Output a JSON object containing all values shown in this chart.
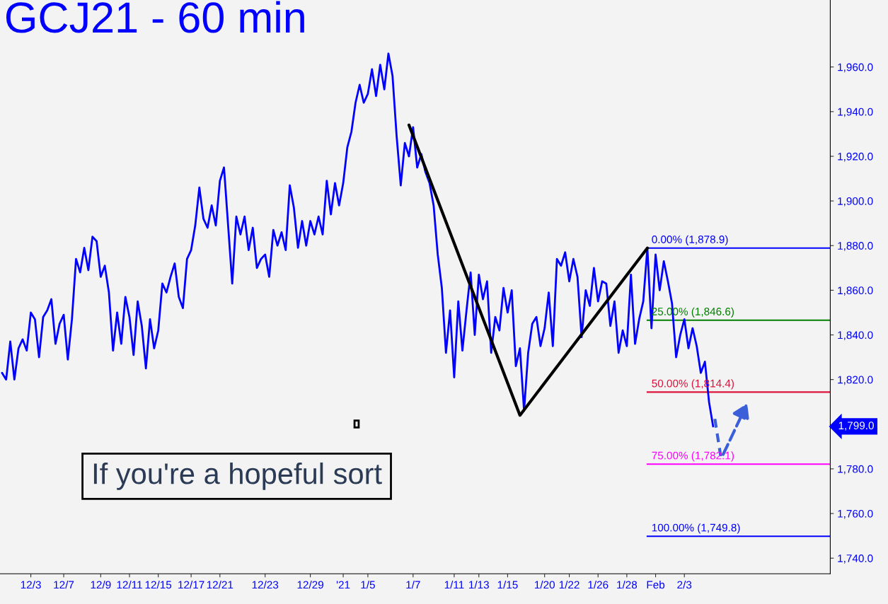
{
  "chart_data": {
    "type": "line",
    "title": "GCJ21 - 60 min",
    "ylim": [
      1733,
      1990
    ],
    "categories": [
      null,
      null,
      null,
      null,
      null,
      null,
      null,
      "12/3",
      null,
      null,
      null,
      null,
      null,
      null,
      null,
      "12/7",
      null,
      null,
      null,
      null,
      null,
      null,
      null,
      null,
      "12/9",
      null,
      null,
      null,
      null,
      null,
      null,
      "12/11",
      null,
      null,
      null,
      null,
      null,
      null,
      "12/15",
      null,
      null,
      null,
      null,
      null,
      null,
      null,
      "12/17",
      null,
      null,
      null,
      null,
      null,
      null,
      "12/21",
      null,
      null,
      null,
      null,
      null,
      null,
      null,
      null,
      null,
      null,
      "12/23",
      null,
      null,
      null,
      null,
      null,
      null,
      null,
      null,
      null,
      null,
      "12/29",
      null,
      null,
      null,
      null,
      null,
      null,
      null,
      "'21",
      null,
      null,
      null,
      null,
      null,
      "1/5",
      null,
      null,
      null,
      null,
      null,
      null,
      null,
      null,
      null,
      null,
      "1/7",
      null,
      null,
      null,
      null,
      null,
      null,
      null,
      null,
      null,
      "1/11",
      null,
      null,
      null,
      null,
      null,
      "1/13",
      null,
      null,
      null,
      null,
      null,
      null,
      "1/15",
      null,
      null,
      null,
      null,
      null,
      null,
      null,
      null,
      "1/20",
      null,
      null,
      null,
      null,
      null,
      "1/22",
      null,
      null,
      null,
      null,
      null,
      null,
      "1/26",
      null,
      null,
      null,
      null,
      null,
      null,
      "1/28",
      null,
      null,
      null,
      null,
      null,
      null,
      "Feb",
      null,
      null,
      null,
      null,
      null,
      null,
      "2/3",
      null,
      null,
      null,
      null,
      null,
      null,
      null,
      null,
      null,
      null,
      null,
      null,
      null,
      null,
      null,
      null,
      null,
      null,
      null,
      null,
      null,
      null,
      null,
      null,
      null,
      null,
      null,
      null,
      null,
      null,
      null,
      null,
      null,
      null,
      null
    ],
    "yticks": [
      {
        "value": 1740,
        "label": "1,740.0"
      },
      {
        "value": 1760,
        "label": "1,760.0"
      },
      {
        "value": 1780,
        "label": "1,780.0"
      },
      {
        "value": 1820,
        "label": "1,820.0"
      },
      {
        "value": 1840,
        "label": "1,840.0"
      },
      {
        "value": 1860,
        "label": "1,860.0"
      },
      {
        "value": 1880,
        "label": "1,880.0"
      },
      {
        "value": 1900,
        "label": "1,900.0"
      },
      {
        "value": 1920,
        "label": "1,920.0"
      },
      {
        "value": 1940,
        "label": "1,940.0"
      },
      {
        "value": 1960,
        "label": "1,960.0"
      }
    ],
    "series": [
      {
        "color": "#0000ff",
        "values": [
          1823,
          1820,
          1837,
          1820,
          1834,
          1838,
          1833,
          1850,
          1847,
          1830,
          1848,
          1851,
          1856,
          1836,
          1845,
          1849,
          1829,
          1847,
          1874,
          1868,
          1879,
          1869,
          1884,
          1882,
          1866,
          1871,
          1859,
          1833,
          1850,
          1836,
          1857,
          1848,
          1831,
          1855,
          1844,
          1825,
          1847,
          1834,
          1842,
          1863,
          1859,
          1866,
          1872,
          1857,
          1852,
          1874,
          1878,
          1889,
          1906,
          1892,
          1888,
          1898,
          1889,
          1909,
          1915,
          1889,
          1863,
          1893,
          1885,
          1893,
          1878,
          1888,
          1870,
          1874,
          1876,
          1866,
          1887,
          1880,
          1886,
          1878,
          1907,
          1897,
          1879,
          1891,
          1880,
          1891,
          1885,
          1893,
          1885,
          1909,
          1894,
          1908,
          1898,
          1908,
          1924,
          1931,
          1944,
          1952,
          1944,
          1948,
          1959,
          1947,
          1961,
          1950,
          1966,
          1956,
          1929,
          1907,
          1926,
          1920,
          1933,
          1915,
          1921,
          1913,
          1908,
          1898,
          1876,
          1861,
          1832,
          1851,
          1821,
          1855,
          1833,
          1851,
          1868,
          1840,
          1867,
          1856,
          1864,
          1832,
          1848,
          1842,
          1861,
          1850,
          1860,
          1826,
          1834,
          1806,
          1832,
          1845,
          1848,
          1835,
          1843,
          1859,
          1835,
          1874,
          1871,
          1877,
          1864,
          1874,
          1866,
          1839,
          1860,
          1853,
          1870,
          1855,
          1864,
          1863,
          1844,
          1855,
          1832,
          1842,
          1835,
          1867,
          1836,
          1847,
          1855,
          1878.9,
          1843,
          1876,
          1860,
          1873,
          1864,
          1854,
          1830,
          1840,
          1847,
          1834,
          1843,
          1835,
          1823,
          1828,
          1810,
          1799,
          null,
          null,
          null,
          null,
          null,
          null,
          null,
          null,
          null,
          null,
          null,
          null,
          null,
          null,
          null,
          null,
          null,
          null,
          null,
          null,
          null,
          null,
          null,
          null,
          null,
          null,
          null,
          null
        ]
      },
      {
        "color": "#000000",
        "values": [
          null,
          null,
          null,
          null,
          null,
          null,
          null,
          null,
          null,
          null,
          null,
          null,
          null,
          null,
          null,
          null,
          null,
          null,
          null,
          null,
          null,
          null,
          null,
          null,
          null,
          null,
          null,
          null,
          null,
          null,
          null,
          null,
          null,
          null,
          null,
          null,
          null,
          null,
          null,
          null,
          null,
          null,
          null,
          null,
          null,
          null,
          null,
          null,
          null,
          null,
          null,
          null,
          null,
          null,
          null,
          null,
          null,
          null,
          null,
          null,
          null,
          null,
          null,
          null,
          null,
          null,
          null,
          null,
          null,
          null,
          null,
          null,
          null,
          null,
          null,
          null,
          null,
          null,
          null,
          null,
          null,
          null,
          null,
          null,
          null,
          null,
          null,
          null,
          null,
          null,
          null,
          null,
          null,
          null,
          null,
          null,
          null,
          null,
          null,
          1934,
          null,
          null,
          null,
          null,
          null,
          null,
          null,
          null,
          null,
          null,
          null,
          null,
          null,
          null,
          null,
          null,
          null,
          null,
          null,
          null,
          null,
          null,
          null,
          null,
          null,
          null,
          1804,
          null,
          null,
          null,
          null,
          null,
          null,
          null,
          null,
          null,
          null,
          null,
          null,
          null,
          null,
          null,
          null,
          null,
          null,
          null,
          null,
          null,
          null,
          null,
          null,
          null,
          null,
          null,
          null,
          null,
          null,
          1878.9,
          null,
          null,
          null,
          null,
          null,
          null,
          null,
          null,
          null,
          null,
          null,
          null,
          null,
          null,
          null,
          null,
          null,
          null,
          null,
          null,
          null,
          null,
          null,
          null,
          null,
          null,
          null,
          null,
          null,
          null,
          null,
          null,
          null,
          null,
          null,
          null,
          null,
          null,
          null,
          null,
          null,
          null,
          null,
          null
        ]
      }
    ],
    "ref_lines": [
      {
        "axis": "y",
        "value": 1878.9,
        "label": "0.00% (1,878.9)",
        "color": "#0000ff"
      },
      {
        "axis": "y",
        "value": 1846.6,
        "label": "25.00% (1,846.6)",
        "color": "#008000"
      },
      {
        "axis": "y",
        "value": 1814.4,
        "label": "50.00% (1,814.4)",
        "color": "#dc143c"
      },
      {
        "axis": "y",
        "value": 1782.1,
        "label": "75.00% (1,782.1)",
        "color": "#ff00ff"
      },
      {
        "axis": "y",
        "value": 1749.8,
        "label": "100.00% (1,749.8)",
        "color": "#0000ff"
      }
    ],
    "annotations": [
      "If you're a hopeful sort",
      "1,799.0"
    ]
  }
}
